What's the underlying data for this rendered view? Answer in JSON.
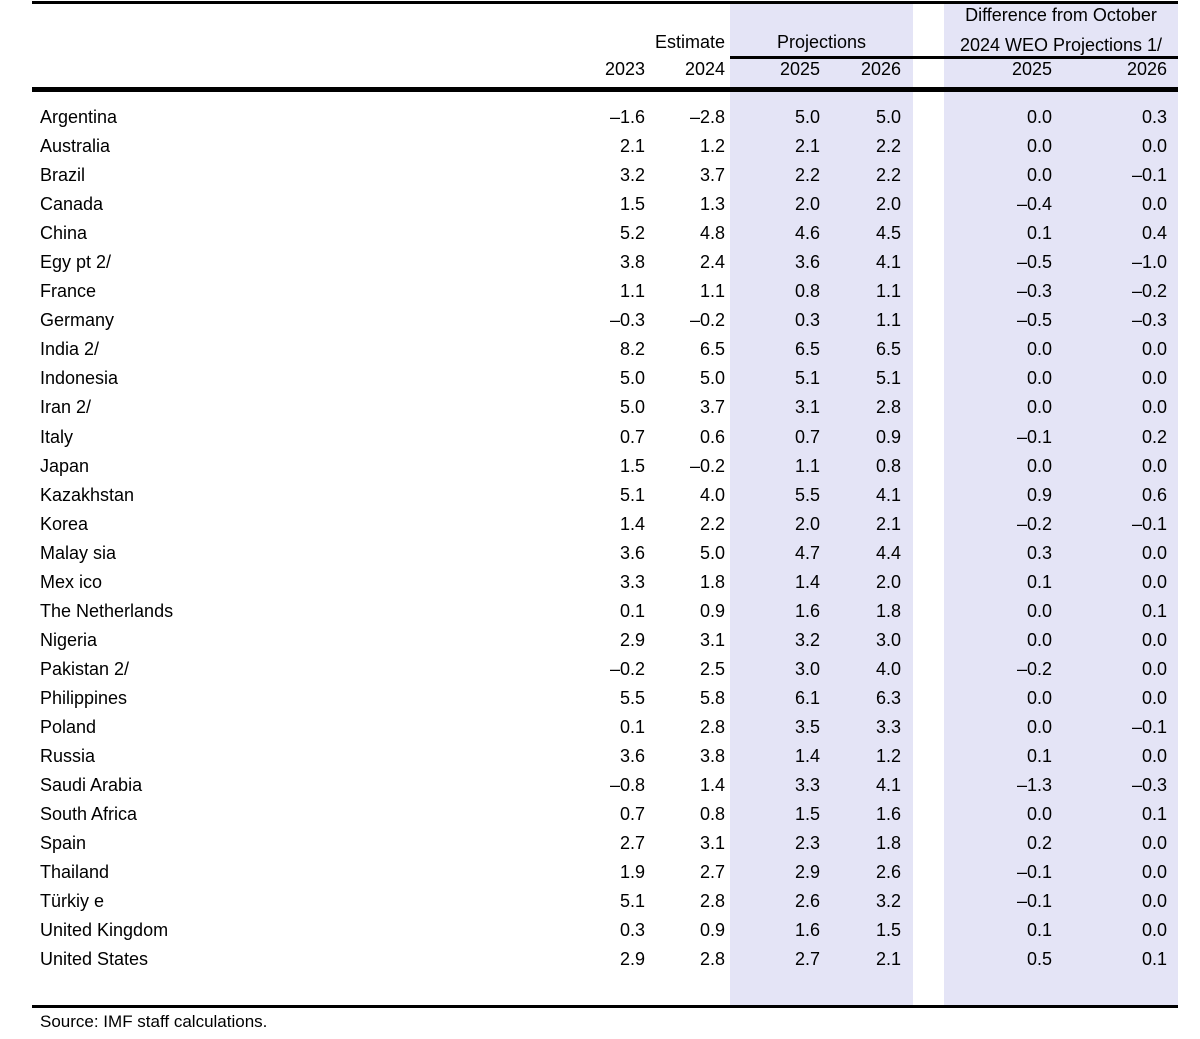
{
  "colors": {
    "highlight_band": "#e4e4f6",
    "rule": "#000000",
    "text": "#000000",
    "background": "#ffffff"
  },
  "table": {
    "group_headers": {
      "estimate": "Estimate",
      "projections": "Projections",
      "difference_line1": "Difference from October",
      "difference_line2": "2024 WEO Projections 1/"
    },
    "year_headers": [
      "2023",
      "2024",
      "2025",
      "2026",
      "2025",
      "2026"
    ],
    "rows": [
      {
        "country": "Argentina",
        "values": [
          "–1.6",
          "–2.8",
          "5.0",
          "5.0",
          "0.0",
          "0.3"
        ]
      },
      {
        "country": "Australia",
        "values": [
          "2.1",
          "1.2",
          "2.1",
          "2.2",
          "0.0",
          "0.0"
        ]
      },
      {
        "country": "Brazil",
        "values": [
          "3.2",
          "3.7",
          "2.2",
          "2.2",
          "0.0",
          "–0.1"
        ]
      },
      {
        "country": "Canada",
        "values": [
          "1.5",
          "1.3",
          "2.0",
          "2.0",
          "–0.4",
          "0.0"
        ]
      },
      {
        "country": "China",
        "values": [
          "5.2",
          "4.8",
          "4.6",
          "4.5",
          "0.1",
          "0.4"
        ]
      },
      {
        "country": "Egy pt 2/",
        "values": [
          "3.8",
          "2.4",
          "3.6",
          "4.1",
          "–0.5",
          "–1.0"
        ]
      },
      {
        "country": "France",
        "values": [
          "1.1",
          "1.1",
          "0.8",
          "1.1",
          "–0.3",
          "–0.2"
        ]
      },
      {
        "country": "Germany",
        "values": [
          "–0.3",
          "–0.2",
          "0.3",
          "1.1",
          "–0.5",
          "–0.3"
        ]
      },
      {
        "country": "India 2/",
        "values": [
          "8.2",
          "6.5",
          "6.5",
          "6.5",
          "0.0",
          "0.0"
        ]
      },
      {
        "country": "Indonesia",
        "values": [
          "5.0",
          "5.0",
          "5.1",
          "5.1",
          "0.0",
          "0.0"
        ]
      },
      {
        "country": "Iran 2/",
        "values": [
          "5.0",
          "3.7",
          "3.1",
          "2.8",
          "0.0",
          "0.0"
        ]
      },
      {
        "country": "Italy",
        "values": [
          "0.7",
          "0.6",
          "0.7",
          "0.9",
          "–0.1",
          "0.2"
        ]
      },
      {
        "country": "Japan",
        "values": [
          "1.5",
          "–0.2",
          "1.1",
          "0.8",
          "0.0",
          "0.0"
        ]
      },
      {
        "country": "Kazakhstan",
        "values": [
          "5.1",
          "4.0",
          "5.5",
          "4.1",
          "0.9",
          "0.6"
        ]
      },
      {
        "country": "Korea",
        "values": [
          "1.4",
          "2.2",
          "2.0",
          "2.1",
          "–0.2",
          "–0.1"
        ]
      },
      {
        "country": "Malay sia",
        "values": [
          "3.6",
          "5.0",
          "4.7",
          "4.4",
          "0.3",
          "0.0"
        ]
      },
      {
        "country": "Mex ico",
        "values": [
          "3.3",
          "1.8",
          "1.4",
          "2.0",
          "0.1",
          "0.0"
        ]
      },
      {
        "country": "The Netherlands",
        "values": [
          "0.1",
          "0.9",
          "1.6",
          "1.8",
          "0.0",
          "0.1"
        ]
      },
      {
        "country": "Nigeria",
        "values": [
          "2.9",
          "3.1",
          "3.2",
          "3.0",
          "0.0",
          "0.0"
        ]
      },
      {
        "country": "Pakistan 2/",
        "values": [
          "–0.2",
          "2.5",
          "3.0",
          "4.0",
          "–0.2",
          "0.0"
        ]
      },
      {
        "country": "Philippines",
        "values": [
          "5.5",
          "5.8",
          "6.1",
          "6.3",
          "0.0",
          "0.0"
        ]
      },
      {
        "country": "Poland",
        "values": [
          "0.1",
          "2.8",
          "3.5",
          "3.3",
          "0.0",
          "–0.1"
        ]
      },
      {
        "country": "Russia",
        "values": [
          "3.6",
          "3.8",
          "1.4",
          "1.2",
          "0.1",
          "0.0"
        ]
      },
      {
        "country": "Saudi Arabia",
        "values": [
          "–0.8",
          "1.4",
          "3.3",
          "4.1",
          "–1.3",
          "–0.3"
        ]
      },
      {
        "country": "South Africa",
        "values": [
          "0.7",
          "0.8",
          "1.5",
          "1.6",
          "0.0",
          "0.1"
        ]
      },
      {
        "country": "Spain",
        "values": [
          "2.7",
          "3.1",
          "2.3",
          "1.8",
          "0.2",
          "0.0"
        ]
      },
      {
        "country": "Thailand",
        "values": [
          "1.9",
          "2.7",
          "2.9",
          "2.6",
          "–0.1",
          "0.0"
        ]
      },
      {
        "country": "Türkiy e",
        "values": [
          "5.1",
          "2.8",
          "2.6",
          "3.2",
          "–0.1",
          "0.0"
        ]
      },
      {
        "country": "United Kingdom",
        "values": [
          "0.3",
          "0.9",
          "1.6",
          "1.5",
          "0.1",
          "0.0"
        ]
      },
      {
        "country": "United States",
        "values": [
          "2.9",
          "2.8",
          "2.7",
          "2.1",
          "0.5",
          "0.1"
        ]
      }
    ],
    "footer_source": "Source: IMF staff calculations."
  }
}
